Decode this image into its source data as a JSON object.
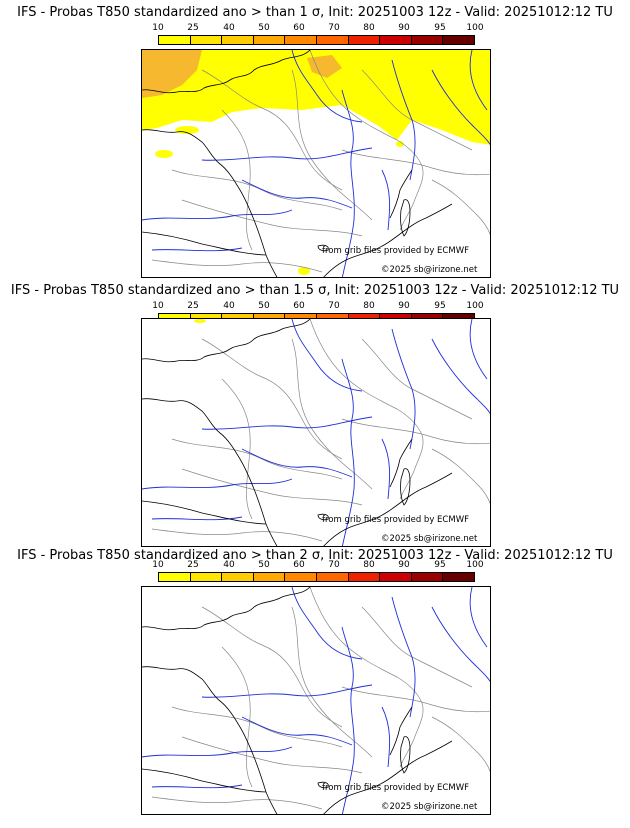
{
  "colorbar": {
    "ticks": [
      "10",
      "25",
      "40",
      "50",
      "60",
      "70",
      "80",
      "90",
      "95",
      "100"
    ],
    "colors": [
      "#ffff00",
      "#ffe600",
      "#ffcc00",
      "#ffaa00",
      "#ff8800",
      "#ff6600",
      "#ee2200",
      "#cc0000",
      "#990000",
      "#660000"
    ]
  },
  "panels": [
    {
      "title": "IFS - Probas T850  standardized ano > than 1 σ, Init: 20251003 12z - Valid: 20251012:12 TU",
      "source": "from grib files provided by ECMWF",
      "copyright": "©2025 sb@irizone.net"
    },
    {
      "title": "IFS - Probas T850  standardized ano > than 1.5 σ, Init: 20251003 12z - Valid: 20251012:12 TU",
      "source": "from grib files provided by ECMWF",
      "copyright": "©2025 sb@irizone.net"
    },
    {
      "title": "IFS - Probas T850  standardized ano > than 2 σ, Init: 20251003 12z - Valid: 20251012:12 TU",
      "source": "from grib files provided by ECMWF",
      "copyright": "©2025 sb@irizone.net"
    }
  ],
  "map_colors": {
    "coast": "#000000",
    "rivers": "#1f2fd8",
    "borders": "#888888",
    "prob_low": "#ffff00",
    "prob_mid": "#f5b82e"
  }
}
